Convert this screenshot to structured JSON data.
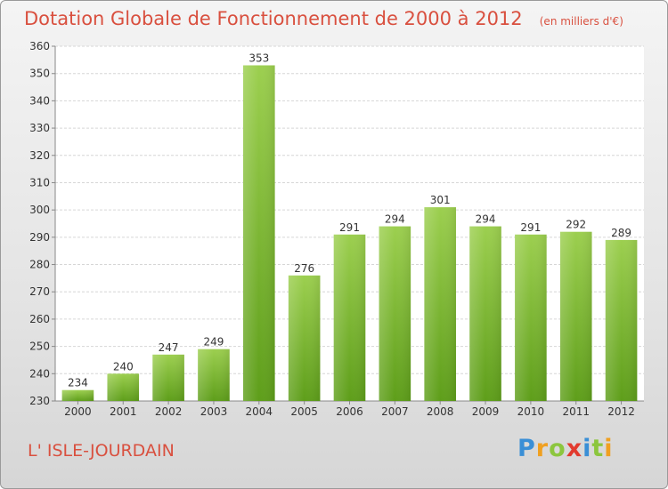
{
  "chart_data": {
    "type": "bar",
    "title": "Dotation Globale de Fonctionnement de 2000 à 2012",
    "subtitle": "(en milliers d'€)",
    "categories": [
      "2000",
      "2001",
      "2002",
      "2003",
      "2004",
      "2005",
      "2006",
      "2007",
      "2008",
      "2009",
      "2010",
      "2011",
      "2012"
    ],
    "values": [
      234,
      240,
      247,
      249,
      353,
      276,
      291,
      294,
      301,
      294,
      291,
      292,
      289
    ],
    "ylim": [
      230,
      360
    ],
    "yticks": [
      230,
      240,
      250,
      260,
      270,
      280,
      290,
      300,
      310,
      320,
      330,
      340,
      350,
      360
    ],
    "grid": true,
    "bar_color": "#7bbb2e"
  },
  "footer": {
    "commune": "L' ISLE-JOURDAIN",
    "brand": {
      "letters": [
        "P",
        "r",
        "o",
        "x",
        "i",
        "t",
        "i"
      ],
      "colors": [
        "#3a8fd6",
        "#f0a020",
        "#8cc63e",
        "#e23a2e",
        "#3a8fd6",
        "#8cc63e",
        "#f0a020"
      ]
    }
  }
}
